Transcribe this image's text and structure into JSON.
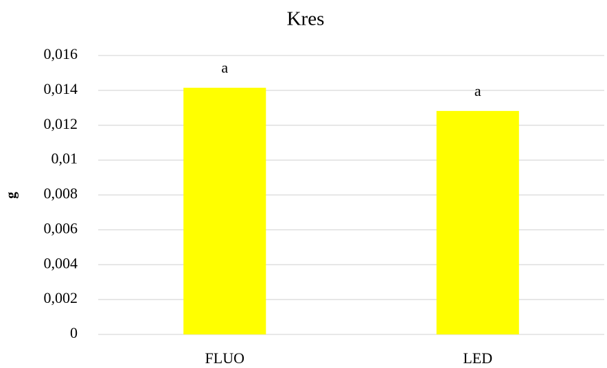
{
  "chart_data": {
    "type": "bar",
    "title": "Kres",
    "y_label": "g",
    "categories": [
      "FLUO",
      "LED"
    ],
    "values": [
      0.01415,
      0.01282
    ],
    "annotations": [
      "a",
      "a"
    ],
    "color": "#ffff00",
    "ylim": [
      0,
      0.016
    ],
    "yticks": [
      0,
      {
        "value": 0.002,
        "label": "0,002"
      },
      {
        "value": 0.004,
        "label": "0,004"
      },
      {
        "value": 0.006,
        "label": "0,006"
      },
      {
        "value": 0.008,
        "label": "0,008"
      },
      {
        "value": 0.01,
        "label": "0,01"
      },
      {
        "value": 0.012,
        "label": "0,012"
      },
      {
        "value": 0.014,
        "label": "0,014"
      },
      {
        "value": 0.016,
        "label": "0,016"
      }
    ],
    "grid": true
  }
}
